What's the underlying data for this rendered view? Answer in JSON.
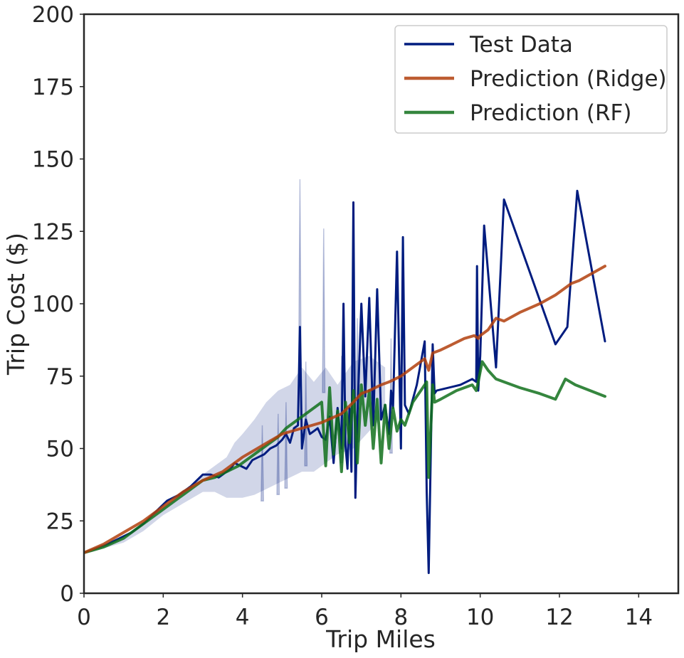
{
  "chart_data": {
    "type": "line",
    "title": "",
    "xlabel": "Trip Miles",
    "ylabel": "Trip Cost ($)",
    "xlim": [
      0,
      15
    ],
    "ylim": [
      0,
      200
    ],
    "xticks": [
      "0",
      "2",
      "4",
      "6",
      "8",
      "10",
      "12",
      "14"
    ],
    "yticks": [
      "0",
      "25",
      "50",
      "75",
      "100",
      "125",
      "150",
      "175",
      "200"
    ],
    "grid": false,
    "legend_position": "top-right",
    "band": {
      "series": "Test Data",
      "upper": [
        [
          0,
          14
        ],
        [
          0.5,
          16.5
        ],
        [
          1,
          19.5
        ],
        [
          1.5,
          24
        ],
        [
          2,
          30
        ],
        [
          2.5,
          35
        ],
        [
          3,
          41
        ],
        [
          3.3,
          44
        ],
        [
          3.6,
          47
        ],
        [
          3.8,
          52
        ],
        [
          4.0,
          55
        ],
        [
          4.3,
          60
        ],
        [
          4.6,
          66
        ],
        [
          4.9,
          70
        ],
        [
          5.2,
          72
        ],
        [
          5.5,
          78
        ],
        [
          5.8,
          73
        ],
        [
          6.1,
          78
        ],
        [
          6.4,
          72
        ],
        [
          6.8,
          80
        ],
        [
          7.2,
          82
        ],
        [
          7.6,
          78
        ]
      ],
      "lower": [
        [
          7.6,
          62
        ],
        [
          7.2,
          56
        ],
        [
          6.8,
          50
        ],
        [
          6.4,
          48
        ],
        [
          6.1,
          45
        ],
        [
          5.8,
          42
        ],
        [
          5.5,
          42
        ],
        [
          5.2,
          40
        ],
        [
          4.9,
          38
        ],
        [
          4.6,
          36
        ],
        [
          4.3,
          34
        ],
        [
          4.0,
          33
        ],
        [
          3.8,
          33
        ],
        [
          3.6,
          33
        ],
        [
          3.3,
          35
        ],
        [
          3,
          35
        ],
        [
          2.5,
          31
        ],
        [
          2,
          27
        ],
        [
          1.5,
          21.5
        ],
        [
          1,
          17.5
        ],
        [
          0.5,
          15.5
        ],
        [
          0,
          13.5
        ]
      ],
      "spikes": [
        [
          4.5,
          58
        ],
        [
          4.9,
          62
        ],
        [
          5.1,
          66
        ],
        [
          5.45,
          143
        ],
        [
          5.6,
          80
        ],
        [
          6.05,
          126
        ],
        [
          6.5,
          82
        ],
        [
          6.9,
          95
        ],
        [
          7.75,
          88
        ]
      ]
    },
    "series": [
      {
        "name": "Test Data",
        "color": "#001c7f",
        "x": [
          0,
          0.3,
          0.6,
          0.9,
          1.2,
          1.5,
          1.8,
          2.1,
          2.4,
          2.7,
          3.0,
          3.2,
          3.4,
          3.6,
          3.7,
          3.8,
          3.95,
          4.1,
          4.25,
          4.4,
          4.55,
          4.7,
          4.85,
          5.0,
          5.1,
          5.2,
          5.3,
          5.4,
          5.45,
          5.5,
          5.6,
          5.7,
          5.8,
          5.9,
          6.0,
          6.1,
          6.2,
          6.3,
          6.4,
          6.5,
          6.55,
          6.6,
          6.65,
          6.7,
          6.75,
          6.8,
          6.85,
          6.9,
          7.0,
          7.1,
          7.2,
          7.3,
          7.4,
          7.5,
          7.6,
          7.7,
          7.75,
          7.8,
          7.9,
          8.0,
          8.05,
          8.1,
          8.2,
          8.4,
          8.6,
          8.65,
          8.7,
          8.8,
          8.85,
          8.9,
          9.5,
          9.8,
          9.9,
          9.92,
          9.95,
          10.0,
          10.1,
          10.4,
          10.6,
          11.9,
          12.2,
          12.45,
          13.15
        ],
        "y": [
          14,
          15.5,
          17,
          19,
          21,
          24,
          28,
          32,
          34,
          37,
          41,
          41,
          40,
          42,
          43,
          45,
          44,
          43,
          46,
          47,
          48,
          50,
          51,
          53,
          55,
          52,
          57,
          58,
          92,
          50,
          60,
          55,
          56,
          57,
          54,
          53,
          61,
          45,
          64,
          50,
          100,
          51,
          43,
          64,
          42,
          135,
          33,
          61,
          100,
          68,
          102,
          58,
          105,
          60,
          65,
          55,
          70,
          64,
          118,
          50,
          123,
          65,
          62,
          72,
          87,
          35,
          7,
          86,
          69,
          70,
          72,
          74,
          73,
          113,
          70,
          82,
          127,
          78,
          136,
          86,
          92,
          139,
          87
        ]
      },
      {
        "name": "Prediction (Ridge)",
        "color": "#b1400d",
        "x": [
          0,
          0.5,
          1.0,
          1.5,
          2.0,
          2.5,
          3.0,
          3.5,
          4.0,
          4.5,
          5.0,
          5.5,
          6.0,
          6.5,
          6.8,
          7.0,
          7.2,
          7.5,
          7.7,
          8.0,
          8.3,
          8.6,
          8.7,
          8.8,
          9.0,
          9.3,
          9.6,
          9.85,
          9.95,
          10.0,
          10.2,
          10.4,
          10.6,
          11.0,
          11.5,
          11.9,
          12.1,
          12.3,
          12.5,
          13.15
        ],
        "y": [
          14,
          17,
          21,
          25,
          30,
          35,
          39,
          42,
          47,
          51,
          55,
          57,
          59,
          62,
          66,
          69,
          70,
          72,
          73,
          75,
          78,
          81,
          77,
          83,
          84,
          86,
          88,
          89,
          88,
          89,
          91,
          95,
          94,
          97,
          100,
          103,
          105,
          107,
          108,
          113
        ]
      },
      {
        "name": "Prediction (RF)",
        "color": "#12711c",
        "x": [
          0,
          0.5,
          1.0,
          1.5,
          2.0,
          2.5,
          3.0,
          3.3,
          3.6,
          3.9,
          4.1,
          4.3,
          4.5,
          4.7,
          4.9,
          5.1,
          5.3,
          5.5,
          5.7,
          5.9,
          6.0,
          6.1,
          6.2,
          6.3,
          6.4,
          6.5,
          6.6,
          6.7,
          6.8,
          6.9,
          7.0,
          7.1,
          7.2,
          7.3,
          7.4,
          7.5,
          7.6,
          7.7,
          7.8,
          7.9,
          8.0,
          8.1,
          8.3,
          8.5,
          8.65,
          8.7,
          8.8,
          8.85,
          9.0,
          9.4,
          9.8,
          9.9,
          9.95,
          10.05,
          10.2,
          10.4,
          10.6,
          11.0,
          11.5,
          11.9,
          12.15,
          12.4,
          13.15
        ],
        "y": [
          14,
          16,
          19,
          24,
          29,
          34,
          39,
          40,
          42,
          44,
          46,
          48,
          50,
          52,
          54,
          57,
          59,
          61,
          63,
          65,
          66,
          44,
          71,
          48,
          63,
          42,
          66,
          52,
          70,
          45,
          72,
          58,
          70,
          50,
          67,
          45,
          65,
          50,
          64,
          56,
          60,
          58,
          66,
          70,
          73,
          40,
          72,
          66,
          67,
          70,
          72,
          70,
          73,
          80,
          77,
          74,
          73,
          71,
          69,
          67,
          74,
          72,
          68
        ]
      }
    ]
  }
}
